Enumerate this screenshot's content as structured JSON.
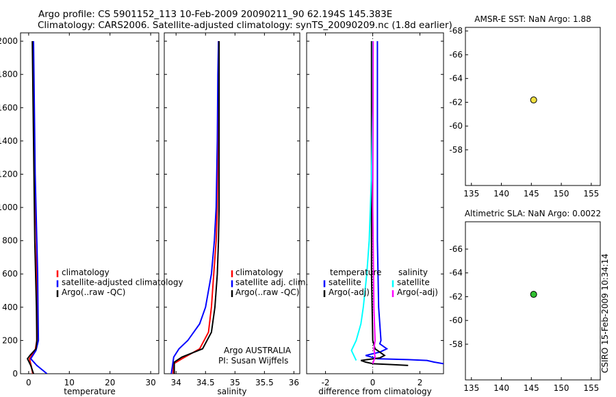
{
  "figure": {
    "title_line1": "Argo profile: CS 5901152_113 10-Feb-2009 20090211_90 62.194S 145.383E",
    "title_line2": "Climatology: CARS2006. Satellite-adjusted climatology: synTS_20090209.nc (1.8d earlier)",
    "credit": "CSIRO 15-Feb-2009 10:34:14"
  },
  "colors": {
    "climatology": "#ff0000",
    "satellite": "#0000ff",
    "argo": "#000000",
    "salinity_satellite": "#00ffff",
    "salinity_argo": "#ff00ff",
    "float_marker_sst": "#f0e040",
    "float_marker_sla": "#30c030"
  },
  "chart_data": [
    {
      "type": "line",
      "panel": "temperature",
      "xlabel": "temperature",
      "xlim": [
        -2,
        32
      ],
      "ylim": [
        2050,
        0
      ],
      "xticks": [
        0,
        10,
        20,
        30
      ],
      "yticks": [
        0,
        200,
        400,
        600,
        800,
        1000,
        1200,
        1400,
        1600,
        1800,
        2000
      ],
      "legend": [
        "climatology",
        "satellite-adjusted climatology",
        "Argo(..raw -QC)"
      ],
      "series": [
        {
          "name": "climatology",
          "color": "#ff0000",
          "x": [
            1.0,
            0.7,
            0.2,
            1.6,
            2.0,
            2.1,
            2.0,
            1.9,
            1.7,
            1.5,
            1.3,
            1.2,
            1.0
          ],
          "y": [
            0,
            40,
            90,
            140,
            200,
            400,
            600,
            800,
            1000,
            1200,
            1400,
            1800,
            2000
          ]
        },
        {
          "name": "satellite-adjusted climatology",
          "color": "#0000ff",
          "x": [
            4.5,
            3.5,
            2.0,
            0.5,
            1.8,
            2.4,
            2.3,
            2.2,
            2.0,
            1.8,
            1.6,
            1.4,
            1.2
          ],
          "y": [
            0,
            20,
            50,
            90,
            140,
            200,
            400,
            600,
            800,
            1000,
            1200,
            1600,
            2000
          ]
        },
        {
          "name": "Argo(..raw -QC)",
          "color": "#000000",
          "x": [
            1.2,
            0.5,
            -0.3,
            0.3,
            1.8,
            2.0,
            1.9,
            1.7,
            1.5,
            1.3,
            1.1,
            0.9
          ],
          "y": [
            0,
            50,
            90,
            110,
            150,
            200,
            400,
            600,
            800,
            1200,
            1600,
            2000
          ]
        }
      ]
    },
    {
      "type": "line",
      "panel": "salinity",
      "xlabel": "salinity",
      "xlim": [
        33.8,
        36.1
      ],
      "ylim": [
        2050,
        0
      ],
      "xticks": [
        34,
        34.5,
        35,
        35.5,
        36
      ],
      "legend": [
        "climatology",
        "satellite adj. clim.",
        "Argo(..raw -QC)"
      ],
      "annotations": [
        "Argo AUSTRALIA",
        "PI: Susan Wijffels"
      ],
      "series": [
        {
          "name": "climatology",
          "color": "#ff0000",
          "x": [
            33.95,
            33.96,
            34.1,
            34.4,
            34.55,
            34.6,
            34.64,
            34.68,
            34.7,
            34.71,
            34.72,
            34.72
          ],
          "y": [
            0,
            60,
            90,
            150,
            250,
            400,
            600,
            800,
            1000,
            1400,
            1800,
            2000
          ]
        },
        {
          "name": "satellite adj. clim.",
          "color": "#0000ff",
          "x": [
            33.92,
            33.96,
            34.05,
            34.2,
            34.4,
            34.5,
            34.55,
            34.6,
            34.65,
            34.68,
            34.7,
            34.71,
            34.72
          ],
          "y": [
            0,
            100,
            150,
            200,
            300,
            400,
            500,
            600,
            800,
            1000,
            1400,
            1800,
            2000
          ]
        },
        {
          "name": "Argo(..raw -QC)",
          "color": "#000000",
          "x": [
            33.97,
            33.97,
            34.1,
            34.45,
            34.6,
            34.66,
            34.7,
            34.72,
            34.73,
            34.73,
            34.73
          ],
          "y": [
            0,
            70,
            100,
            150,
            250,
            400,
            600,
            800,
            1000,
            1500,
            2000
          ]
        }
      ]
    },
    {
      "type": "line",
      "panel": "difference",
      "xlabel": "difference from climatology",
      "xlim": [
        -2.8,
        3.0
      ],
      "ylim": [
        2050,
        0
      ],
      "xticks": [
        -2,
        0,
        2
      ],
      "legend_temperature": [
        "temperature",
        "satellite",
        "Argo(-adj)"
      ],
      "legend_salinity": [
        "salinity",
        "satellite",
        "Argo(-adj)"
      ],
      "series": [
        {
          "name": "temperature satellite",
          "color": "#0000ff",
          "x": [
            3.0,
            2.6,
            2.3,
            1.5,
            0.2,
            -0.3,
            0.3,
            0.6,
            0.3,
            0.35,
            0.25,
            0.2,
            0.2,
            0.2
          ],
          "y": [
            60,
            70,
            80,
            85,
            90,
            110,
            130,
            150,
            180,
            200,
            400,
            800,
            1400,
            2000
          ]
        },
        {
          "name": "temperature Argo(-adj)",
          "color": "#000000",
          "x": [
            1.5,
            0.8,
            0.0,
            -0.3,
            -0.5,
            0.3,
            0.5,
            0.1,
            0.0,
            -0.05,
            -0.05,
            -0.05
          ],
          "y": [
            50,
            55,
            60,
            70,
            80,
            95,
            110,
            150,
            200,
            600,
            1200,
            2000
          ]
        },
        {
          "name": "salinity satellite",
          "color": "#00ffff",
          "x": [
            -0.7,
            -0.9,
            -0.7,
            -0.5,
            -0.4,
            -0.25,
            -0.15,
            -0.05,
            0.0,
            0.0
          ],
          "y": [
            80,
            140,
            200,
            300,
            400,
            600,
            800,
            1200,
            1600,
            2000
          ]
        },
        {
          "name": "salinity Argo(-adj)",
          "color": "#ff00ff",
          "x": [
            0.0,
            0.1,
            0.05,
            0.1,
            0.05,
            0.0,
            0.02
          ],
          "y": [
            60,
            100,
            150,
            200,
            400,
            1000,
            2000
          ]
        }
      ]
    },
    {
      "type": "heatmap",
      "panel": "sst-map",
      "title": "AMSR-E SST: NaN Argo: 1.88",
      "xlim": [
        134,
        156.5
      ],
      "ylim": [
        -68.3,
        -55
      ],
      "xticks": [
        135,
        140,
        145,
        150,
        155
      ],
      "yticks": [
        -58,
        -60,
        -62,
        -64,
        -66,
        -68
      ],
      "data_extent_lat": [
        -60,
        -55
      ],
      "float_position": {
        "lon": 145.383,
        "lat": -62.194
      },
      "colormap": [
        "#ffd23a",
        "#f4a91e",
        "#e07a14",
        "#c84a0c",
        "#a81a06"
      ]
    },
    {
      "type": "heatmap",
      "panel": "sla-map",
      "title": "Altimetric SLA: NaN Argo: 0.0022",
      "xlim": [
        134,
        156.5
      ],
      "ylim": [
        -68.3,
        -55
      ],
      "xticks": [
        135,
        140,
        145,
        150,
        155
      ],
      "yticks": [
        -58,
        -60,
        -62,
        -64,
        -66
      ],
      "data_extent_lat": [
        -60,
        -55
      ],
      "float_position": {
        "lon": 145.383,
        "lat": -62.194
      },
      "colormap": [
        "#10a050",
        "#28c038",
        "#80e028",
        "#d8f030",
        "#f09018",
        "#e83010"
      ]
    }
  ]
}
